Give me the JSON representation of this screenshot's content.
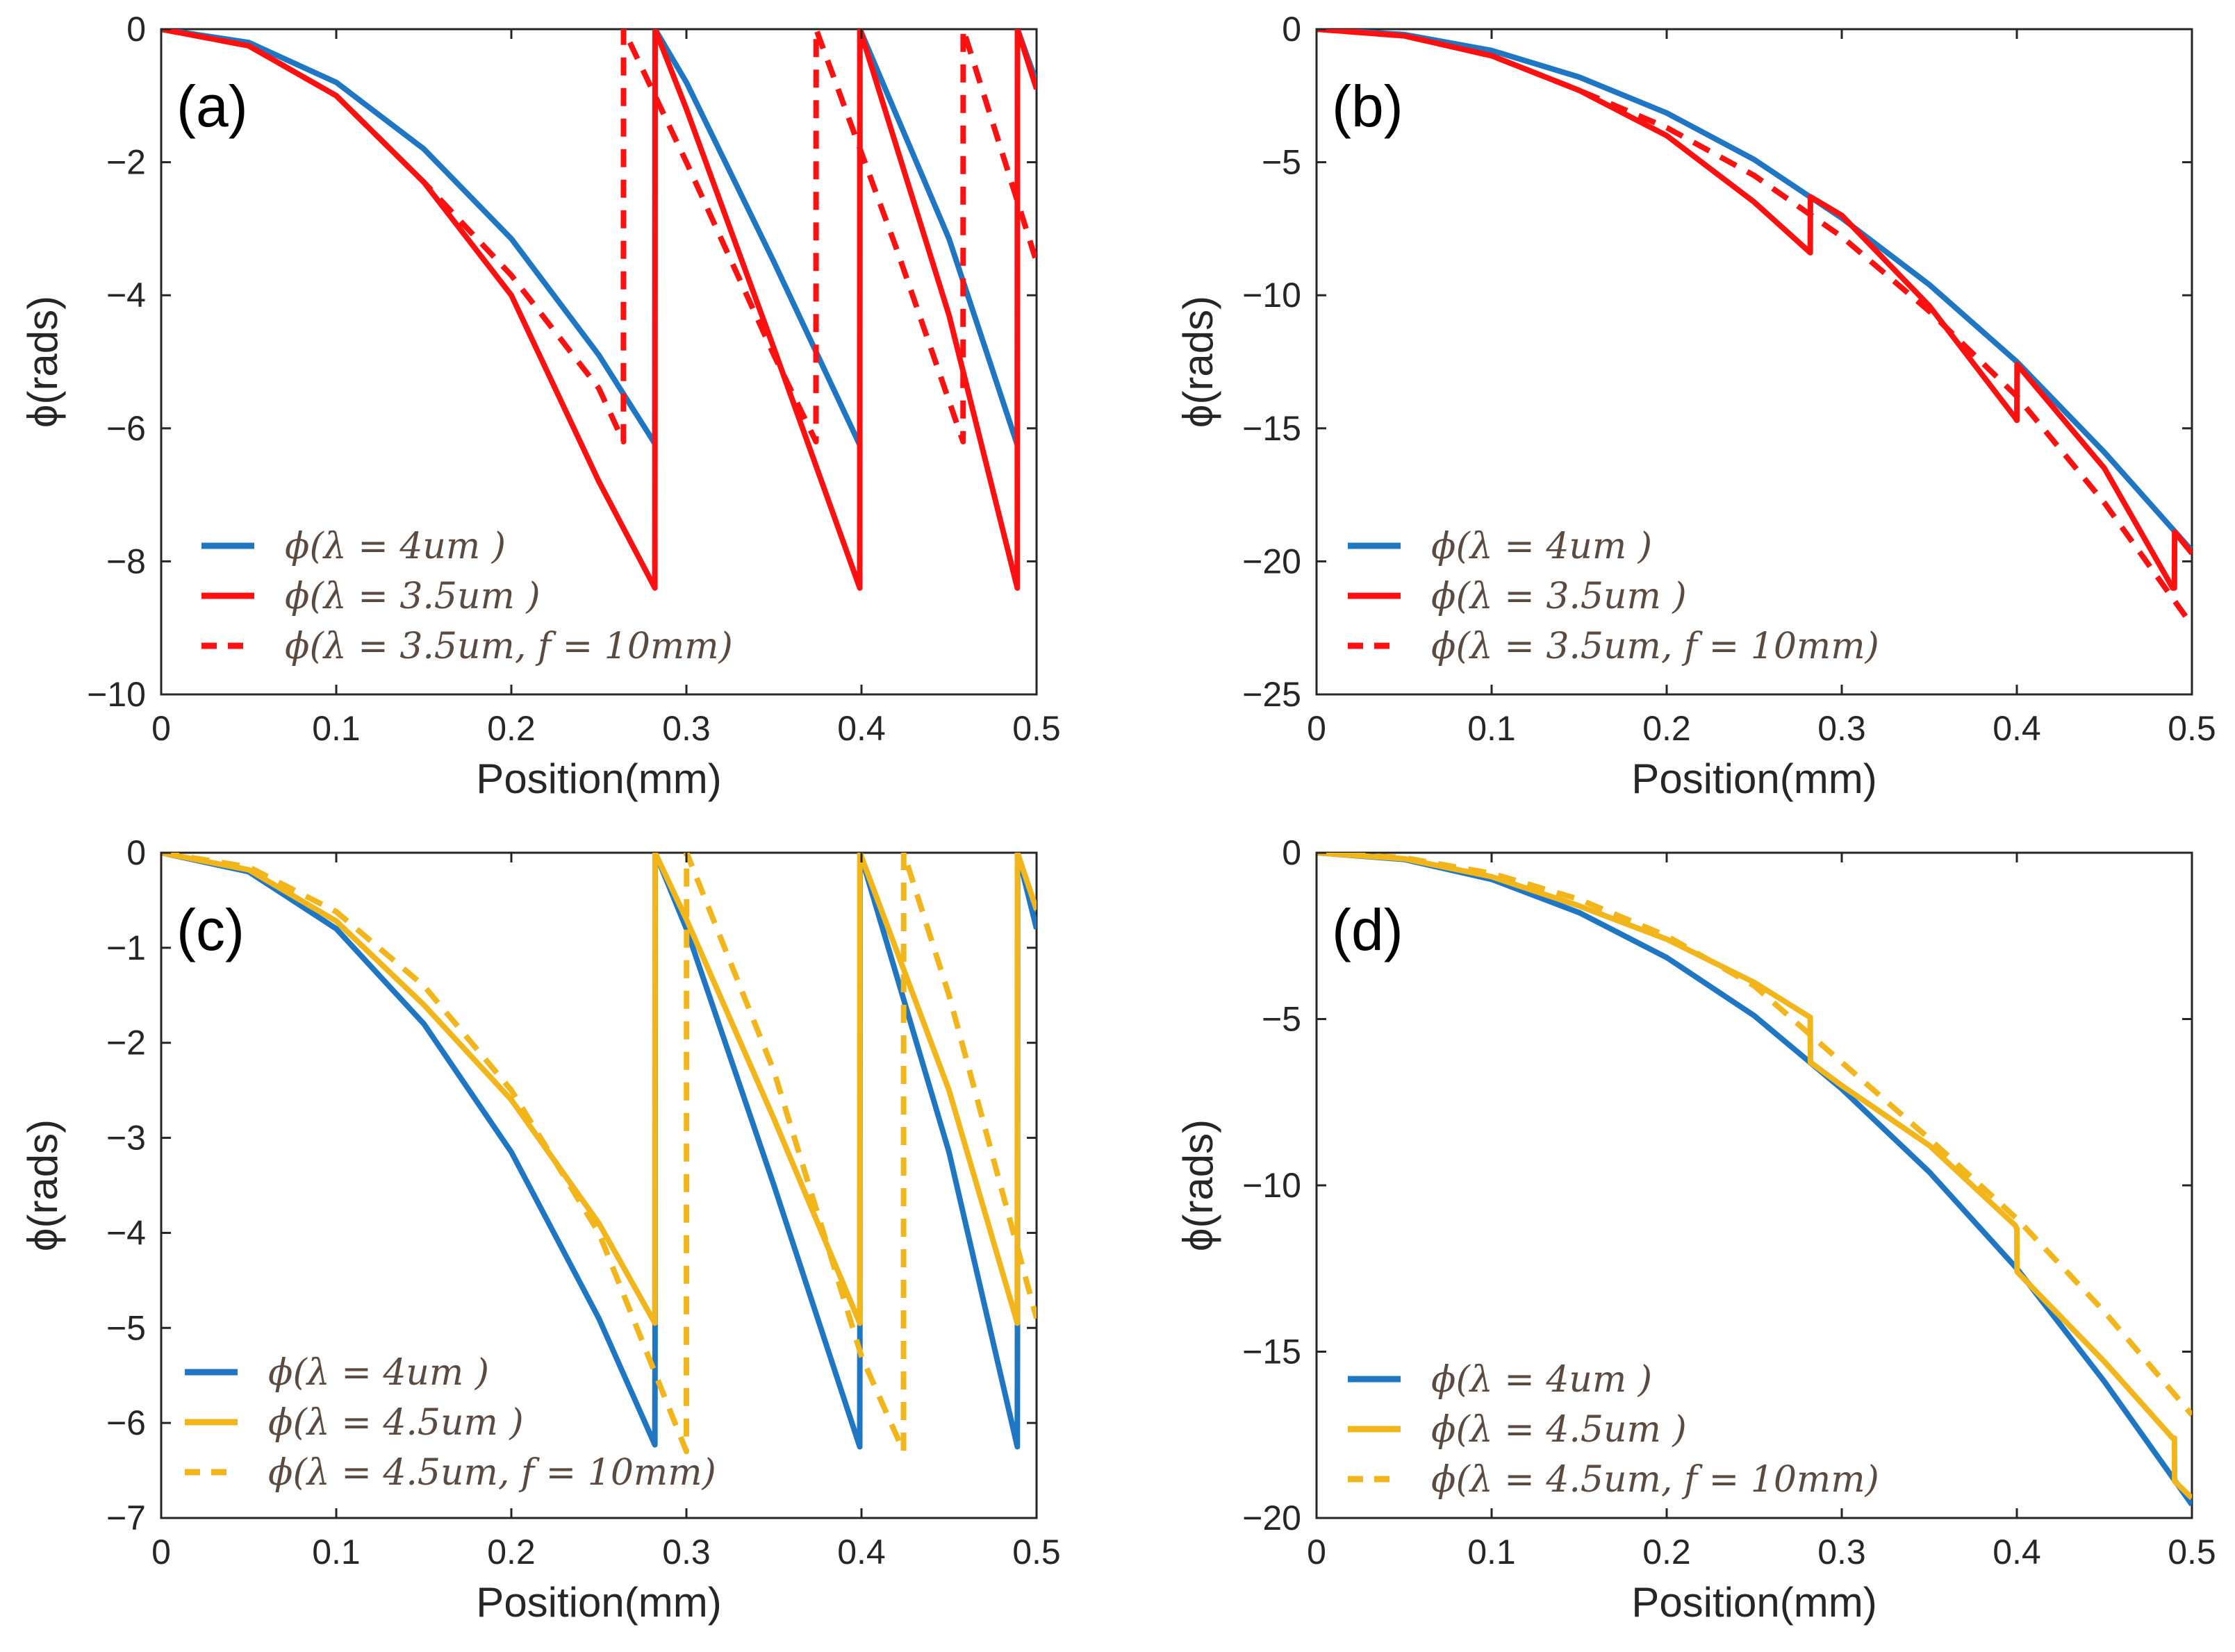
{
  "colors": {
    "blue": "#1f77c4",
    "red": "#ff1010",
    "yellow": "#f2b51a",
    "axis": "#262626"
  },
  "chart_data": [
    {
      "type": "line",
      "panel_label": "(a)",
      "xlabel": "Position(mm)",
      "ylabel": "ϕ(rads)",
      "xlim": [
        0,
        0.5
      ],
      "ylim": [
        -10,
        0
      ],
      "xticks": [
        0,
        0.1,
        0.2,
        0.3,
        0.4,
        0.5
      ],
      "xtick_labels": [
        "0",
        "0.1",
        "0.2",
        "0.3",
        "0.4",
        "0.5"
      ],
      "yticks": [
        -10,
        -8,
        -6,
        -4,
        -2,
        0
      ],
      "ytick_labels": [
        "−10",
        "−8",
        "−6",
        "−4",
        "−2",
        "0"
      ],
      "series": [
        {
          "name": "ϕ(λ = 4um )",
          "color": "blue",
          "style": "solid",
          "x": [
            0,
            0.05,
            0.1,
            0.15,
            0.2,
            0.25,
            0.282,
            0.2821,
            0.3,
            0.35,
            0.399,
            0.3991,
            0.45,
            0.489,
            0.4891,
            0.5
          ],
          "y": [
            0,
            -0.2,
            -0.8,
            -1.8,
            -3.15,
            -4.9,
            -6.23,
            0,
            -0.8,
            -3.5,
            -6.25,
            0,
            -3.15,
            -6.25,
            0,
            -0.8
          ]
        },
        {
          "name": "ϕ(λ = 3.5um )",
          "color": "red",
          "style": "solid",
          "x": [
            0,
            0.05,
            0.1,
            0.15,
            0.2,
            0.25,
            0.282,
            0.2821,
            0.3,
            0.35,
            0.399,
            0.3991,
            0.45,
            0.489,
            0.4891,
            0.5
          ],
          "y": [
            0,
            -0.25,
            -1.0,
            -2.3,
            -4.0,
            -6.8,
            -8.4,
            0,
            -1.2,
            -4.8,
            -8.4,
            0,
            -4.3,
            -8.4,
            0,
            -0.9
          ]
        },
        {
          "name": "ϕ(λ = 3.5um, f = 10mm)",
          "color": "red",
          "style": "dashed",
          "x": [
            0,
            0.05,
            0.1,
            0.15,
            0.2,
            0.25,
            0.264,
            0.2641,
            0.3,
            0.35,
            0.374,
            0.3741,
            0.42,
            0.458,
            0.4581,
            0.5
          ],
          "y": [
            0,
            -0.25,
            -1.0,
            -2.3,
            -3.7,
            -5.4,
            -6.2,
            0,
            -2.0,
            -4.9,
            -6.2,
            0,
            -3.3,
            -6.2,
            0,
            -3.5
          ]
        }
      ]
    },
    {
      "type": "line",
      "panel_label": "(b)",
      "xlabel": "Position(mm)",
      "ylabel": "ϕ(rads)",
      "xlim": [
        0,
        0.5
      ],
      "ylim": [
        -25,
        0
      ],
      "xticks": [
        0,
        0.1,
        0.2,
        0.3,
        0.4,
        0.5
      ],
      "xtick_labels": [
        "0",
        "0.1",
        "0.2",
        "0.3",
        "0.4",
        "0.5"
      ],
      "yticks": [
        -25,
        -20,
        -15,
        -10,
        -5,
        0
      ],
      "ytick_labels": [
        "−25",
        "−20",
        "−15",
        "−10",
        "−5",
        "0"
      ],
      "series": [
        {
          "name": "ϕ(λ = 4um )",
          "color": "blue",
          "style": "solid",
          "x": [
            0,
            0.05,
            0.1,
            0.15,
            0.2,
            0.25,
            0.3,
            0.35,
            0.4,
            0.45,
            0.5
          ],
          "y": [
            0,
            -0.2,
            -0.8,
            -1.8,
            -3.15,
            -4.9,
            -7.1,
            -9.6,
            -12.5,
            -15.9,
            -19.6
          ]
        },
        {
          "name": "ϕ(λ = 3.5um )",
          "color": "red",
          "style": "solid",
          "x": [
            0,
            0.05,
            0.1,
            0.15,
            0.2,
            0.25,
            0.282,
            0.2821,
            0.3,
            0.35,
            0.399,
            0.4,
            0.4001,
            0.45,
            0.489,
            0.49,
            0.4901,
            0.5
          ],
          "y": [
            0,
            -0.25,
            -1.0,
            -2.3,
            -4.0,
            -6.5,
            -8.4,
            -6.3,
            -7.0,
            -10.4,
            -14.6,
            -14.7,
            -12.6,
            -16.5,
            -21.0,
            -21.0,
            -18.9,
            -19.7
          ]
        },
        {
          "name": "ϕ(λ = 3.5um, f = 10mm)",
          "color": "red",
          "style": "dashed",
          "x": [
            0,
            0.05,
            0.1,
            0.15,
            0.2,
            0.25,
            0.3,
            0.35,
            0.4,
            0.45,
            0.5
          ],
          "y": [
            0,
            -0.25,
            -1.0,
            -2.3,
            -3.7,
            -5.5,
            -7.8,
            -10.6,
            -13.8,
            -17.8,
            -22.4
          ]
        }
      ]
    },
    {
      "type": "line",
      "panel_label": "(c)",
      "xlabel": "Position(mm)",
      "ylabel": "ϕ(rads)",
      "xlim": [
        0,
        0.5
      ],
      "ylim": [
        -7,
        0
      ],
      "xticks": [
        0,
        0.1,
        0.2,
        0.3,
        0.4,
        0.5
      ],
      "xtick_labels": [
        "0",
        "0.1",
        "0.2",
        "0.3",
        "0.4",
        "0.5"
      ],
      "yticks": [
        -7,
        -6,
        -5,
        -4,
        -3,
        -2,
        -1,
        0
      ],
      "ytick_labels": [
        "−7",
        "−6",
        "−5",
        "−4",
        "−3",
        "−2",
        "−1",
        "0"
      ],
      "series": [
        {
          "name": "ϕ(λ = 4um )",
          "color": "blue",
          "style": "solid",
          "x": [
            0,
            0.05,
            0.1,
            0.15,
            0.2,
            0.25,
            0.282,
            0.2821,
            0.2822,
            0.3,
            0.35,
            0.399,
            0.3991,
            0.3992,
            0.45,
            0.489,
            0.4891,
            0.4892,
            0.5
          ],
          "y": [
            0,
            -0.2,
            -0.8,
            -1.8,
            -3.15,
            -4.9,
            -6.23,
            -5.05,
            0,
            -0.8,
            -3.5,
            -6.25,
            -5.05,
            0,
            -3.15,
            -6.25,
            -5.05,
            0,
            -0.8
          ]
        },
        {
          "name": "ϕ(λ = 4.5um )",
          "color": "yellow",
          "style": "solid",
          "x": [
            0,
            0.05,
            0.1,
            0.15,
            0.2,
            0.25,
            0.282,
            0.2821,
            0.3,
            0.35,
            0.399,
            0.3991,
            0.45,
            0.489,
            0.4891,
            0.5
          ],
          "y": [
            0,
            -0.18,
            -0.72,
            -1.6,
            -2.6,
            -3.9,
            -4.95,
            0,
            -0.7,
            -2.8,
            -4.95,
            0,
            -2.5,
            -4.95,
            0,
            -0.6
          ]
        },
        {
          "name": "ϕ(λ = 4.5um, f = 10mm)",
          "color": "yellow",
          "style": "dashed",
          "x": [
            0,
            0.05,
            0.1,
            0.15,
            0.2,
            0.25,
            0.3,
            0.3001,
            0.35,
            0.4,
            0.424,
            0.4241,
            0.45,
            0.5
          ],
          "y": [
            0,
            -0.15,
            -0.62,
            -1.4,
            -2.5,
            -4.0,
            -6.3,
            0,
            -2.3,
            -5.3,
            -6.3,
            0,
            -1.5,
            -4.9
          ]
        }
      ]
    },
    {
      "type": "line",
      "panel_label": "(d)",
      "xlabel": "Position(mm)",
      "ylabel": "ϕ(rads)",
      "xlim": [
        0,
        0.5
      ],
      "ylim": [
        -20,
        0
      ],
      "xticks": [
        0,
        0.1,
        0.2,
        0.3,
        0.4,
        0.5
      ],
      "xtick_labels": [
        "0",
        "0.1",
        "0.2",
        "0.3",
        "0.4",
        "0.5"
      ],
      "yticks": [
        -20,
        -15,
        -10,
        -5,
        0
      ],
      "ytick_labels": [
        "−20",
        "−15",
        "−10",
        "−5",
        "0"
      ],
      "series": [
        {
          "name": "ϕ(λ = 4um )",
          "color": "blue",
          "style": "solid",
          "x": [
            0,
            0.05,
            0.1,
            0.15,
            0.2,
            0.25,
            0.3,
            0.35,
            0.4,
            0.45,
            0.5
          ],
          "y": [
            0,
            -0.2,
            -0.8,
            -1.8,
            -3.15,
            -4.9,
            -7.1,
            -9.6,
            -12.5,
            -15.9,
            -19.6
          ]
        },
        {
          "name": "ϕ(λ = 4.5um )",
          "color": "yellow",
          "style": "solid",
          "x": [
            0,
            0.05,
            0.1,
            0.15,
            0.2,
            0.25,
            0.282,
            0.2821,
            0.3,
            0.35,
            0.399,
            0.4,
            0.4001,
            0.45,
            0.489,
            0.49,
            0.4901,
            0.5
          ],
          "y": [
            0,
            -0.18,
            -0.72,
            -1.6,
            -2.6,
            -3.9,
            -4.95,
            -6.3,
            -7.0,
            -8.8,
            -11.2,
            -11.3,
            -12.6,
            -15.3,
            -17.6,
            -17.6,
            -18.9,
            -19.4
          ]
        },
        {
          "name": "ϕ(λ = 4.5um, f = 10mm)",
          "color": "yellow",
          "style": "dashed",
          "x": [
            0,
            0.05,
            0.1,
            0.15,
            0.2,
            0.25,
            0.3,
            0.35,
            0.4,
            0.45,
            0.5
          ],
          "y": [
            0,
            -0.15,
            -0.62,
            -1.4,
            -2.5,
            -4.0,
            -6.3,
            -8.6,
            -11.0,
            -13.8,
            -16.9
          ]
        }
      ]
    }
  ]
}
